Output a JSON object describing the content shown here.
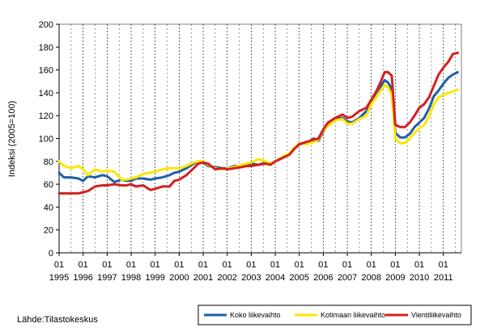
{
  "source": "Lähde:Tilastokeskus",
  "chart_data": {
    "type": "line",
    "ylabel": "Indeksi (2005=100)",
    "ylim": [
      0,
      200
    ],
    "yticks": [
      0,
      20,
      40,
      60,
      80,
      100,
      120,
      140,
      160,
      180,
      200
    ],
    "xlim": [
      1995.0,
      2011.75
    ],
    "xtick_labels": [
      {
        "month": "01",
        "year": "1995"
      },
      {
        "month": "01",
        "year": "1996"
      },
      {
        "month": "01",
        "year": "1997"
      },
      {
        "month": "01",
        "year": "1998"
      },
      {
        "month": "01",
        "year": "1999"
      },
      {
        "month": "01",
        "year": "2000"
      },
      {
        "month": "01",
        "year": "2001"
      },
      {
        "month": "01",
        "year": "2002"
      },
      {
        "month": "01",
        "year": "2003"
      },
      {
        "month": "01",
        "year": "2004"
      },
      {
        "month": "01",
        "year": "2005"
      },
      {
        "month": "01",
        "year": "2006"
      },
      {
        "month": "01",
        "year": "2007"
      },
      {
        "month": "01",
        "year": "2008"
      },
      {
        "month": "01",
        "year": "2009"
      },
      {
        "month": "01",
        "year": "2010"
      },
      {
        "month": "01",
        "year": "2011"
      }
    ],
    "grid": "vertical dashed lines per year",
    "legend_placement": "bottom-right",
    "series": [
      {
        "name": "Koko liikevaihto",
        "color": "#1f5fa8",
        "x": [
          1995.0,
          1995.2,
          1995.5,
          1995.8,
          1996.0,
          1996.2,
          1996.5,
          1996.8,
          1997.0,
          1997.3,
          1997.6,
          1997.8,
          1998.0,
          1998.2,
          1998.5,
          1998.8,
          1999.0,
          1999.3,
          1999.6,
          1999.8,
          2000.0,
          2000.3,
          2000.6,
          2000.8,
          2001.0,
          2001.2,
          2001.5,
          2001.8,
          2002.0,
          2002.3,
          2002.6,
          2002.8,
          2003.0,
          2003.3,
          2003.6,
          2003.8,
          2004.0,
          2004.3,
          2004.6,
          2004.8,
          2005.0,
          2005.3,
          2005.6,
          2005.8,
          2006.0,
          2006.2,
          2006.5,
          2006.8,
          2007.0,
          2007.2,
          2007.5,
          2007.8,
          2008.0,
          2008.2,
          2008.4,
          2008.55,
          2008.7,
          2008.85,
          2009.0,
          2009.2,
          2009.4,
          2009.6,
          2009.8,
          2010.0,
          2010.2,
          2010.4,
          2010.6,
          2010.8,
          2011.0,
          2011.2,
          2011.4,
          2011.6
        ],
        "y": [
          70,
          66,
          66,
          65,
          63,
          67,
          66,
          68,
          67,
          62,
          64,
          63,
          63,
          65,
          65,
          64,
          65,
          66,
          68,
          70,
          71,
          74,
          78,
          80,
          79,
          76,
          75,
          74,
          74,
          76,
          76,
          77,
          78,
          77,
          79,
          78,
          80,
          83,
          87,
          92,
          95,
          96,
          100,
          98,
          106,
          113,
          117,
          118,
          115,
          114,
          118,
          124,
          133,
          140,
          146,
          151,
          149,
          143,
          105,
          101,
          101,
          104,
          110,
          114,
          118,
          126,
          137,
          142,
          148,
          153,
          156,
          158
        ]
      },
      {
        "name": "Kotimaan liikevaihto",
        "color": "#ffe600",
        "x": [
          1995.0,
          1995.2,
          1995.5,
          1995.8,
          1996.0,
          1996.2,
          1996.5,
          1996.8,
          1997.0,
          1997.3,
          1997.6,
          1997.8,
          1998.0,
          1998.2,
          1998.5,
          1998.8,
          1999.0,
          1999.3,
          1999.6,
          1999.8,
          2000.0,
          2000.3,
          2000.6,
          2000.8,
          2001.0,
          2001.2,
          2001.5,
          2001.8,
          2002.0,
          2002.3,
          2002.6,
          2002.8,
          2003.0,
          2003.3,
          2003.6,
          2003.8,
          2004.0,
          2004.3,
          2004.6,
          2004.8,
          2005.0,
          2005.3,
          2005.6,
          2005.8,
          2006.0,
          2006.2,
          2006.5,
          2006.8,
          2007.0,
          2007.2,
          2007.5,
          2007.8,
          2008.0,
          2008.2,
          2008.4,
          2008.55,
          2008.7,
          2008.85,
          2009.0,
          2009.2,
          2009.4,
          2009.6,
          2009.8,
          2010.0,
          2010.2,
          2010.4,
          2010.6,
          2010.8,
          2011.0,
          2011.2,
          2011.4,
          2011.6
        ],
        "y": [
          80,
          76,
          74,
          76,
          73,
          68,
          73,
          71,
          72,
          71,
          64,
          64,
          65,
          66,
          69,
          70,
          71,
          73,
          74,
          74,
          74,
          76,
          79,
          80,
          80,
          77,
          74,
          73,
          74,
          75,
          77,
          78,
          79,
          82,
          80,
          78,
          80,
          84,
          87,
          92,
          96,
          95,
          97,
          99,
          107,
          111,
          116,
          117,
          113,
          113,
          117,
          120,
          130,
          136,
          142,
          147,
          145,
          138,
          100,
          96,
          96,
          100,
          105,
          109,
          112,
          119,
          130,
          136,
          138,
          140,
          141,
          143
        ]
      },
      {
        "name": "Vientiliikevaihto",
        "color": "#d42020",
        "x": [
          1995.0,
          1995.2,
          1995.5,
          1995.8,
          1996.0,
          1996.2,
          1996.5,
          1996.8,
          1997.0,
          1997.3,
          1997.6,
          1997.8,
          1998.0,
          1998.2,
          1998.5,
          1998.8,
          1999.0,
          1999.3,
          1999.6,
          1999.8,
          2000.0,
          2000.3,
          2000.6,
          2000.8,
          2001.0,
          2001.2,
          2001.5,
          2001.8,
          2002.0,
          2002.3,
          2002.6,
          2002.8,
          2003.0,
          2003.3,
          2003.6,
          2003.8,
          2004.0,
          2004.3,
          2004.6,
          2004.8,
          2005.0,
          2005.3,
          2005.6,
          2005.8,
          2006.0,
          2006.2,
          2006.5,
          2006.8,
          2007.0,
          2007.2,
          2007.5,
          2007.8,
          2008.0,
          2008.2,
          2008.4,
          2008.55,
          2008.7,
          2008.85,
          2009.0,
          2009.2,
          2009.4,
          2009.6,
          2009.8,
          2010.0,
          2010.2,
          2010.4,
          2010.6,
          2010.8,
          2011.0,
          2011.2,
          2011.4,
          2011.6
        ],
        "y": [
          52,
          52,
          52,
          52,
          53,
          54,
          58,
          59,
          59,
          60,
          59,
          59,
          60,
          58,
          59,
          55,
          56,
          58,
          58,
          63,
          64,
          68,
          74,
          78,
          79,
          78,
          73,
          74,
          73,
          74,
          75,
          76,
          76,
          77,
          78,
          77,
          80,
          83,
          86,
          91,
          95,
          97,
          99,
          100,
          108,
          114,
          118,
          121,
          118,
          119,
          124,
          127,
          134,
          141,
          150,
          158,
          158,
          155,
          112,
          110,
          110,
          114,
          120,
          127,
          130,
          136,
          146,
          156,
          162,
          167,
          174,
          175
        ]
      }
    ]
  }
}
